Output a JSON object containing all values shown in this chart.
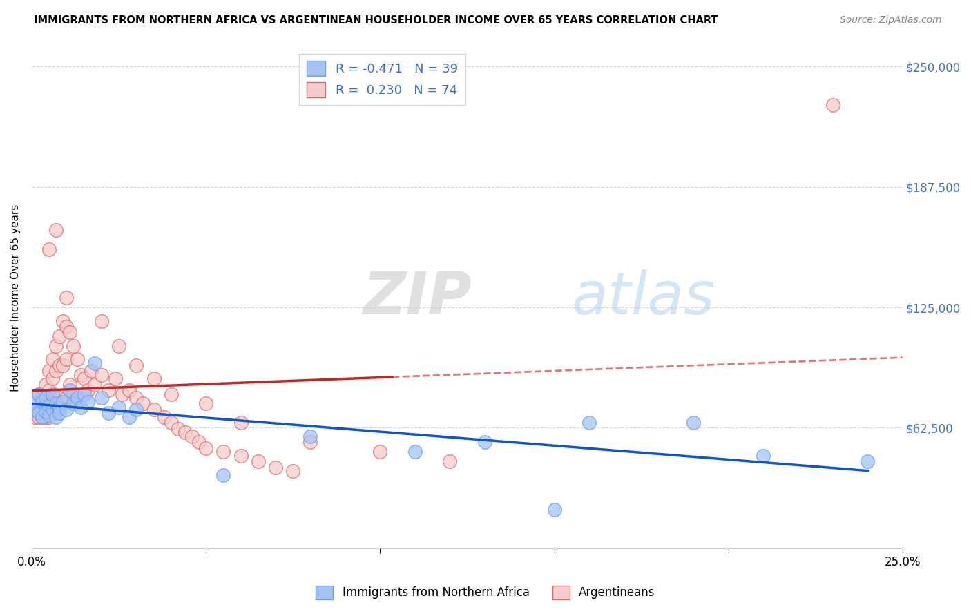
{
  "title": "IMMIGRANTS FROM NORTHERN AFRICA VS ARGENTINEAN HOUSEHOLDER INCOME OVER 65 YEARS CORRELATION CHART",
  "source": "Source: ZipAtlas.com",
  "ylabel": "Householder Income Over 65 years",
  "x_min": 0.0,
  "x_max": 0.25,
  "y_min": 0,
  "y_max": 260000,
  "y_ticks": [
    0,
    62500,
    125000,
    187500,
    250000
  ],
  "y_tick_labels_right": [
    "",
    "$62,500",
    "$125,000",
    "$187,500",
    "$250,000"
  ],
  "x_ticks": [
    0.0,
    0.05,
    0.1,
    0.15,
    0.2,
    0.25
  ],
  "x_tick_labels": [
    "0.0%",
    "",
    "",
    "",
    "",
    "25.0%"
  ],
  "blue_fill_color": "#a4c2f4",
  "pink_fill_color": "#f4cccc",
  "blue_edge_color": "#6d9eeb",
  "pink_edge_color": "#e06666",
  "blue_line_color": "#1155cc",
  "pink_line_color": "#cc2222",
  "blue_line_color_dash": "#9fc5e8",
  "pink_line_color_dash": "#ea9999",
  "watermark_zip": "ZIP",
  "watermark_atlas": "atlas",
  "legend_R_blue": "R = -0.471",
  "legend_N_blue": "N = 39",
  "legend_R_pink": "R =  0.230",
  "legend_N_pink": "N = 74",
  "blue_x": [
    0.001,
    0.001,
    0.002,
    0.002,
    0.003,
    0.003,
    0.004,
    0.004,
    0.005,
    0.005,
    0.006,
    0.006,
    0.007,
    0.007,
    0.008,
    0.008,
    0.009,
    0.01,
    0.011,
    0.012,
    0.013,
    0.014,
    0.015,
    0.016,
    0.018,
    0.02,
    0.022,
    0.025,
    0.028,
    0.03,
    0.055,
    0.08,
    0.11,
    0.13,
    0.15,
    0.16,
    0.19,
    0.21,
    0.24
  ],
  "blue_y": [
    75000,
    72000,
    80000,
    70000,
    76000,
    68000,
    78000,
    71000,
    74000,
    69000,
    72000,
    80000,
    75000,
    68000,
    73000,
    70000,
    76000,
    72000,
    82000,
    75000,
    78000,
    73000,
    80000,
    76000,
    96000,
    78000,
    70000,
    73000,
    68000,
    72000,
    38000,
    58000,
    50000,
    55000,
    20000,
    65000,
    65000,
    48000,
    45000
  ],
  "pink_x": [
    0.001,
    0.001,
    0.001,
    0.002,
    0.002,
    0.002,
    0.003,
    0.003,
    0.003,
    0.004,
    0.004,
    0.004,
    0.005,
    0.005,
    0.005,
    0.005,
    0.006,
    0.006,
    0.006,
    0.007,
    0.007,
    0.007,
    0.008,
    0.008,
    0.008,
    0.009,
    0.009,
    0.01,
    0.01,
    0.01,
    0.011,
    0.011,
    0.012,
    0.012,
    0.013,
    0.014,
    0.015,
    0.016,
    0.017,
    0.018,
    0.02,
    0.022,
    0.024,
    0.026,
    0.028,
    0.03,
    0.032,
    0.035,
    0.038,
    0.04,
    0.042,
    0.044,
    0.046,
    0.048,
    0.05,
    0.055,
    0.06,
    0.065,
    0.07,
    0.075,
    0.02,
    0.025,
    0.03,
    0.035,
    0.04,
    0.05,
    0.06,
    0.08,
    0.1,
    0.12,
    0.005,
    0.007,
    0.01,
    0.23
  ],
  "pink_y": [
    75000,
    70000,
    68000,
    80000,
    72000,
    68000,
    78000,
    73000,
    68000,
    85000,
    75000,
    68000,
    92000,
    82000,
    72000,
    68000,
    98000,
    88000,
    75000,
    105000,
    92000,
    78000,
    110000,
    95000,
    78000,
    118000,
    95000,
    115000,
    98000,
    78000,
    112000,
    85000,
    105000,
    80000,
    98000,
    90000,
    88000,
    82000,
    92000,
    85000,
    90000,
    82000,
    88000,
    80000,
    82000,
    78000,
    75000,
    72000,
    68000,
    65000,
    62000,
    60000,
    58000,
    55000,
    52000,
    50000,
    48000,
    45000,
    42000,
    40000,
    118000,
    105000,
    95000,
    88000,
    80000,
    75000,
    65000,
    55000,
    50000,
    45000,
    155000,
    165000,
    130000,
    230000
  ]
}
